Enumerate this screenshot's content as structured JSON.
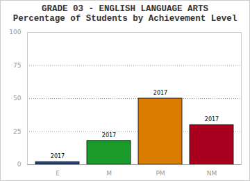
{
  "chart_data": {
    "type": "bar",
    "title": "GRADE 03 - ENGLISH LANGUAGE ARTS",
    "subtitle": "Percentage of Students by Achievement Level",
    "categories": [
      "E",
      "M",
      "PM",
      "NM"
    ],
    "series": [
      {
        "name": "2017",
        "colors": [
          "#1f3f80",
          "#1a9a28",
          "#d97c00",
          "#a8001e"
        ],
        "values": [
          2,
          18,
          50,
          30
        ]
      }
    ],
    "ylim": [
      0,
      100
    ],
    "yticks": [
      0,
      25,
      50,
      75,
      100
    ],
    "grid": true
  }
}
